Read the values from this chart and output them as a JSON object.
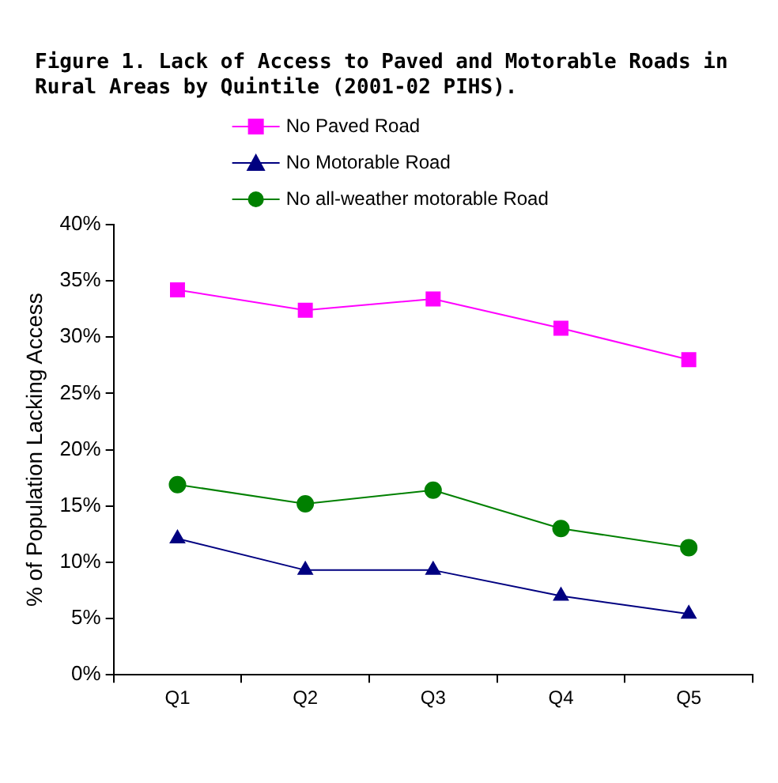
{
  "chart_data": {
    "type": "line",
    "title": "Figure 1. Lack of Access to Paved and Motorable Roads in Rural Areas by Quintile (2001-02 PIHS).",
    "ylabel": "% of Population Lacking Access",
    "categories": [
      "Q1",
      "Q2",
      "Q3",
      "Q4",
      "Q5"
    ],
    "series": [
      {
        "name": "No Paved Road",
        "color": "#ff00ff",
        "marker": "square",
        "values": [
          34.2,
          32.4,
          33.4,
          30.8,
          28.0
        ]
      },
      {
        "name": "No Motorable Road",
        "color": "#000080",
        "marker": "triangle",
        "values": [
          12.1,
          9.3,
          9.3,
          7.0,
          5.4
        ]
      },
      {
        "name": "No all-weather motorable Road",
        "color": "#008000",
        "marker": "circle",
        "values": [
          16.9,
          15.2,
          16.4,
          13.0,
          11.3
        ]
      }
    ],
    "ylim": [
      0,
      40
    ],
    "yticks": [
      {
        "value": 0,
        "label": "0%"
      },
      {
        "value": 5,
        "label": "5%"
      },
      {
        "value": 10,
        "label": "10%"
      },
      {
        "value": 15,
        "label": "15%"
      },
      {
        "value": 20,
        "label": "20%"
      },
      {
        "value": 25,
        "label": "25%"
      },
      {
        "value": 30,
        "label": "30%"
      },
      {
        "value": 35,
        "label": "35%"
      },
      {
        "value": 40,
        "label": "40%"
      }
    ],
    "grid": false,
    "legend": "top"
  }
}
